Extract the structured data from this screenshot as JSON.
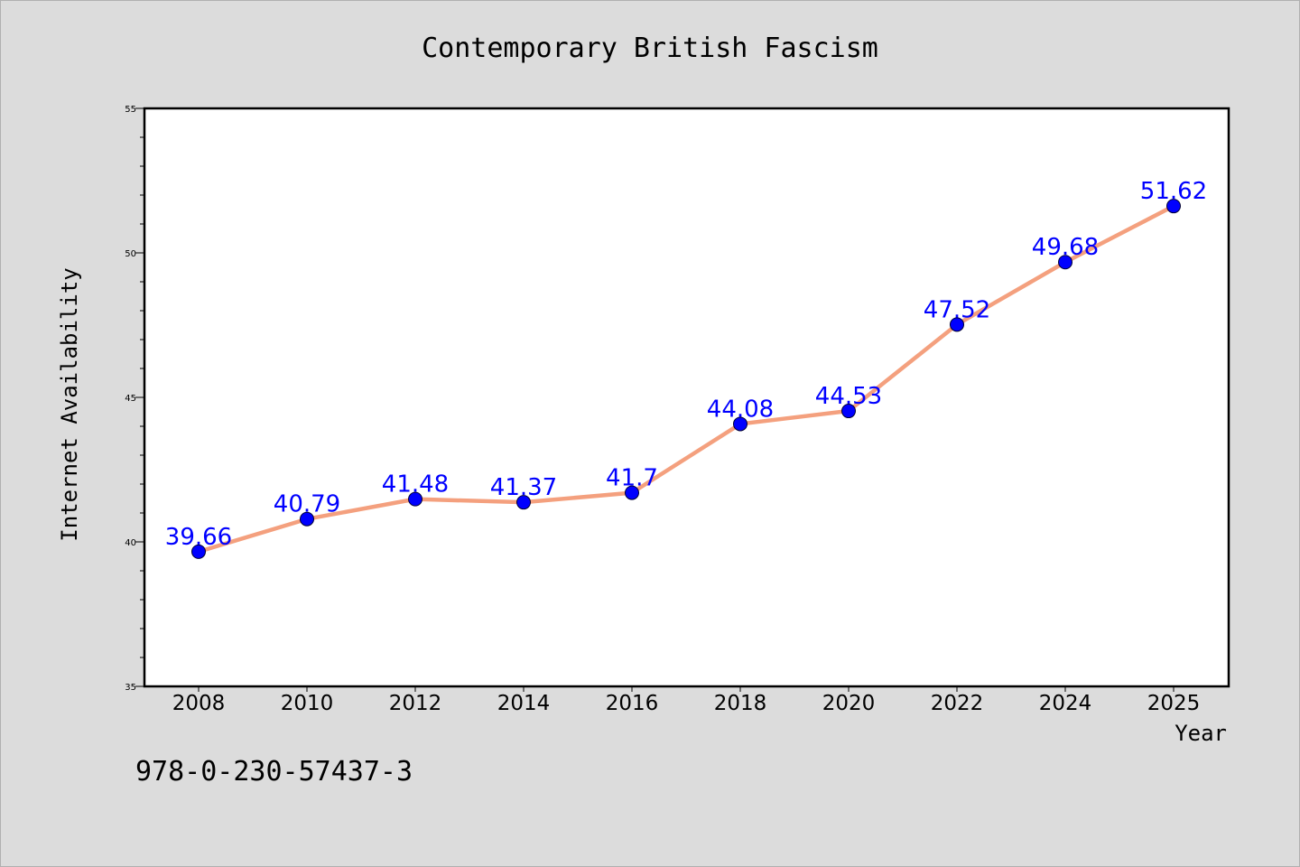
{
  "chart_data": {
    "type": "line",
    "title": "Contemporary British Fascism",
    "xlabel": "Year",
    "ylabel": "Internet Availability",
    "categories": [
      "2008",
      "2010",
      "2012",
      "2014",
      "2016",
      "2018",
      "2020",
      "2022",
      "2024",
      "2025"
    ],
    "series": [
      {
        "values": [
          39.66,
          40.79,
          41.48,
          41.37,
          41.7,
          44.08,
          44.53,
          47.52,
          49.68,
          51.62
        ],
        "labels": [
          "39.66",
          "40.79",
          "41.48",
          "41.37",
          "41.7",
          "44.08",
          "44.53",
          "47.52",
          "49.68",
          "51.62"
        ]
      }
    ],
    "ylim": [
      35,
      55
    ],
    "yticks": [
      "35",
      "40",
      "45",
      "50",
      "55"
    ],
    "grid": false,
    "colors": {
      "line": "#f4a07e",
      "marker": "#0000ff",
      "label": "#0000ff",
      "background": "#dcdcdc",
      "plot_background": "#ffffff"
    }
  },
  "footer": {
    "isbn": "978-0-230-57437-3"
  }
}
